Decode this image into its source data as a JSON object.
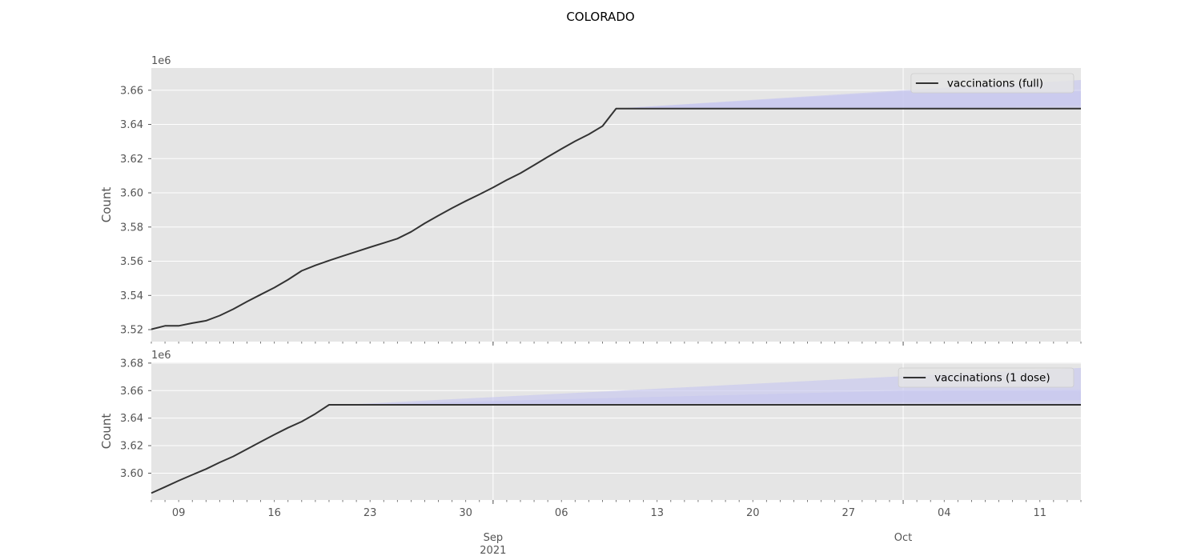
{
  "figure": {
    "title": "COLORADO",
    "background": "#ffffff",
    "plot_background": "#e5e5e5",
    "grid_color": "#ffffff",
    "line_color": "#333333",
    "band_color": "#c8c8f0"
  },
  "chart_data": [
    {
      "type": "line",
      "title": "",
      "ylabel": "Count",
      "offset_label": "1e6",
      "ylim": [
        3.513,
        3.673
      ],
      "yticks": [
        3.52,
        3.54,
        3.56,
        3.58,
        3.6,
        3.62,
        3.64,
        3.66
      ],
      "ytick_labels": [
        "3.52",
        "3.54",
        "3.56",
        "3.58",
        "3.60",
        "3.62",
        "3.64",
        "3.66"
      ],
      "grid": true,
      "legend": {
        "position": "top-right",
        "entries": [
          "vaccinations (full)"
        ]
      },
      "series": [
        {
          "name": "vaccinations (full)",
          "x": [
            "2021-08-07",
            "2021-08-08",
            "2021-08-09",
            "2021-08-10",
            "2021-08-11",
            "2021-08-12",
            "2021-08-13",
            "2021-08-14",
            "2021-08-15",
            "2021-08-16",
            "2021-08-17",
            "2021-08-18",
            "2021-08-19",
            "2021-08-20",
            "2021-08-21",
            "2021-08-22",
            "2021-08-23",
            "2021-08-24",
            "2021-08-25",
            "2021-08-26",
            "2021-08-27",
            "2021-08-28",
            "2021-08-29",
            "2021-08-30",
            "2021-08-31",
            "2021-09-01",
            "2021-09-02",
            "2021-09-03",
            "2021-09-04",
            "2021-09-05",
            "2021-09-06",
            "2021-09-07",
            "2021-09-08",
            "2021-09-09",
            "2021-09-10",
            "2021-10-14"
          ],
          "y": [
            3.5202,
            3.5222,
            3.5222,
            3.5238,
            3.5252,
            3.5282,
            3.532,
            3.5364,
            3.5405,
            3.5446,
            3.5492,
            3.5544,
            3.5576,
            3.5604,
            3.563,
            3.5656,
            3.5682,
            3.5707,
            3.5732,
            3.5772,
            3.5822,
            3.5867,
            3.5911,
            3.5952,
            3.5991,
            3.6031,
            3.6075,
            3.6115,
            3.6162,
            3.621,
            3.6257,
            3.6302,
            3.6342,
            3.639,
            3.6493,
            3.6493
          ]
        }
      ],
      "forecast_bands": [
        {
          "x": [
            "2021-09-10",
            "2021-10-01",
            "2021-10-14"
          ],
          "lower": [
            3.6493,
            3.6493,
            3.6493
          ],
          "upper": [
            3.6493,
            3.6593,
            3.6593
          ]
        },
        {
          "x": [
            "2021-09-10",
            "2021-10-01",
            "2021-10-14"
          ],
          "lower": [
            3.6493,
            3.6493,
            3.651
          ],
          "upper": [
            3.6493,
            3.66,
            3.666
          ]
        }
      ]
    },
    {
      "type": "line",
      "title": "",
      "ylabel": "Count",
      "offset_label": "1e6",
      "ylim": [
        3.5805,
        3.6805
      ],
      "yticks": [
        3.6,
        3.62,
        3.64,
        3.66,
        3.68
      ],
      "ytick_labels": [
        "3.60",
        "3.62",
        "3.64",
        "3.66",
        "3.68"
      ],
      "grid": true,
      "legend": {
        "position": "top-right",
        "entries": [
          "vaccinations (1 dose)"
        ]
      },
      "series": [
        {
          "name": "vaccinations (1 dose)",
          "x": [
            "2021-08-07",
            "2021-08-08",
            "2021-08-09",
            "2021-08-10",
            "2021-08-11",
            "2021-08-12",
            "2021-08-13",
            "2021-08-14",
            "2021-08-15",
            "2021-08-16",
            "2021-08-17",
            "2021-08-18",
            "2021-08-19",
            "2021-08-20",
            "2021-08-21",
            "2021-10-14"
          ],
          "y": [
            3.5855,
            3.59,
            3.5945,
            3.5988,
            3.603,
            3.6078,
            3.6122,
            3.6175,
            3.6228,
            3.628,
            3.633,
            3.6375,
            3.6432,
            3.6497,
            3.6497,
            3.6497
          ]
        }
      ],
      "forecast_bands": [
        {
          "x": [
            "2021-08-21",
            "2021-10-01",
            "2021-10-14"
          ],
          "lower": [
            3.6497,
            3.6497,
            3.6497
          ],
          "upper": [
            3.6497,
            3.66,
            3.6605
          ]
        },
        {
          "x": [
            "2021-08-21",
            "2021-10-01",
            "2021-10-14"
          ],
          "lower": [
            3.6497,
            3.6515,
            3.653
          ],
          "upper": [
            3.6497,
            3.6705,
            3.6765
          ]
        }
      ]
    }
  ],
  "x_axis": {
    "range": [
      "2021-08-07",
      "2021-10-14"
    ],
    "day_ticks": [
      {
        "date": "2021-08-09",
        "label": "09"
      },
      {
        "date": "2021-08-16",
        "label": "16"
      },
      {
        "date": "2021-08-23",
        "label": "23"
      },
      {
        "date": "2021-08-30",
        "label": "30"
      },
      {
        "date": "2021-09-06",
        "label": "06"
      },
      {
        "date": "2021-09-13",
        "label": "13"
      },
      {
        "date": "2021-09-20",
        "label": "20"
      },
      {
        "date": "2021-09-27",
        "label": "27"
      },
      {
        "date": "2021-10-04",
        "label": "04"
      },
      {
        "date": "2021-10-11",
        "label": "11"
      }
    ],
    "month_ticks": [
      {
        "date": "2021-09-01",
        "label": "Sep",
        "sublabel": "2021"
      },
      {
        "date": "2021-10-01",
        "label": "Oct",
        "sublabel": ""
      }
    ]
  }
}
